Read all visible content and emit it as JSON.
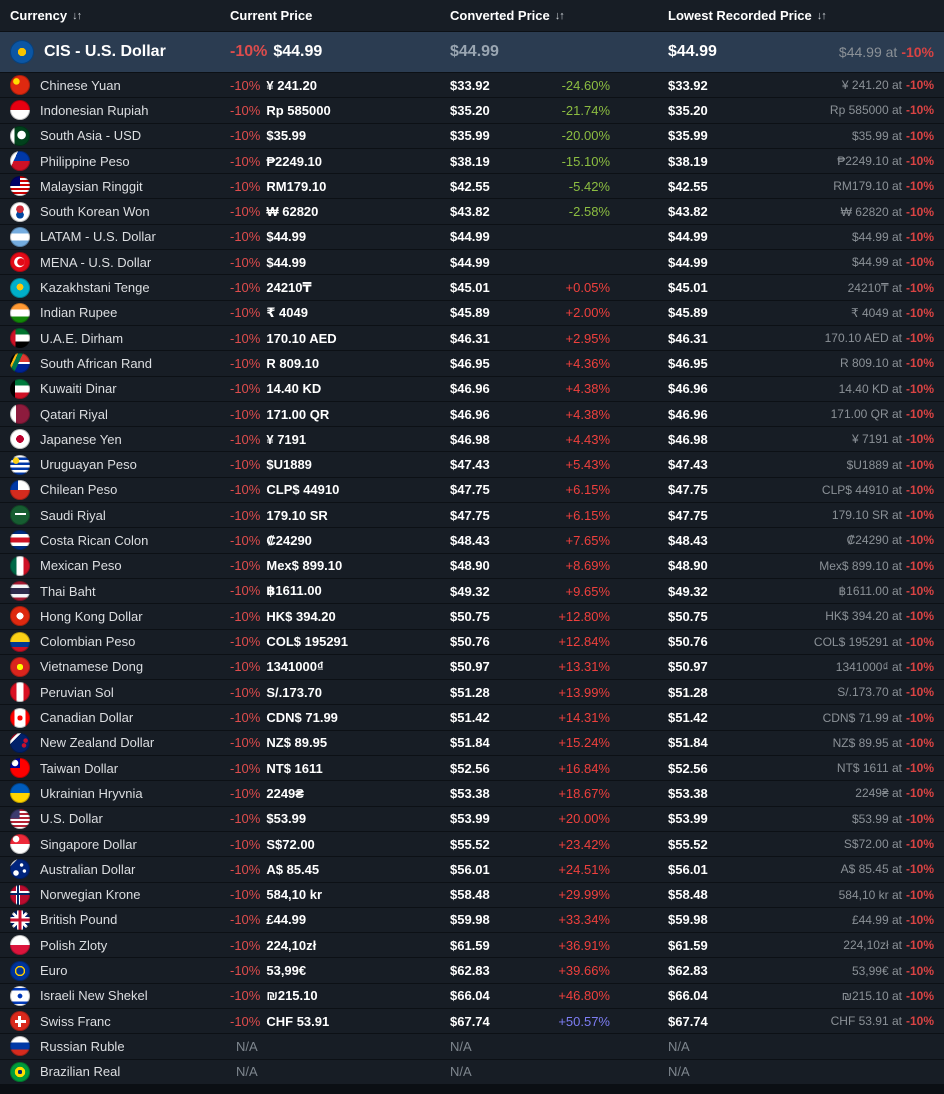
{
  "header": {
    "sort_glyph": "↓↑",
    "columns": [
      {
        "label": "Currency",
        "sortable": true
      },
      {
        "label": "Current Price",
        "sortable": false
      },
      {
        "label": "Converted Price",
        "sortable": true
      },
      {
        "label": "Lowest Recorded Price",
        "sortable": true
      }
    ]
  },
  "colors": {
    "bg": "#0b0f14",
    "row_bg": "#171d25",
    "hl_bg": "#2b3c51",
    "sep": "#0c1015",
    "text": "#dcdee1",
    "muted": "#8b9197",
    "white": "#ffffff",
    "red_discount": "#dd4c4c",
    "green": "#8cbd41",
    "red": "#ee403d",
    "blue": "#7d7df3",
    "at_red": "#d94343"
  },
  "rows": [
    {
      "name": "CIS - U.S. Dollar",
      "highlight": true,
      "flag": "flag-cis",
      "flag_css": "radial-gradient(circle at 50% 50%, #f8c300 0 24%, #0b56a4 25%)",
      "discount": "-10%",
      "current_price": "$44.99",
      "converted_price": "$44.99",
      "diff": "",
      "diff_color": "",
      "lowest_price": "$44.99",
      "lowest_at": "$44.99 at",
      "lowest_at_discount": "-10%"
    },
    {
      "name": "Chinese Yuan",
      "flag": "flag-china",
      "flag_css": "radial-gradient(circle at 32% 32%, #ffde00 0 3px, rgba(0,0,0,0) 3.5px), #de2910",
      "discount": "-10%",
      "current_price": "¥ 241.20",
      "converted_price": "$33.92",
      "diff": "-24.60%",
      "diff_color": "green",
      "lowest_price": "$33.92",
      "lowest_at": "¥ 241.20 at",
      "lowest_at_discount": "-10%"
    },
    {
      "name": "Indonesian Rupiah",
      "flag": "flag-indonesia",
      "flag_css": "linear-gradient(#e70011 50%, #ffffff 50%)",
      "discount": "-10%",
      "current_price": "Rp 585000",
      "converted_price": "$35.20",
      "diff": "-21.74%",
      "diff_color": "green",
      "lowest_price": "$35.20",
      "lowest_at": "Rp 585000 at",
      "lowest_at_discount": "-10%"
    },
    {
      "name": "South Asia - USD",
      "flag": "flag-south-asia",
      "flag_css": "radial-gradient(circle at 58% 45%, #ffffff 0 4px, rgba(0,0,0,0) 4.5px), linear-gradient(90deg, #ffffff 0 22%, #01411c 22%)",
      "discount": "-10%",
      "current_price": "$35.99",
      "converted_price": "$35.99",
      "diff": "-20.00%",
      "diff_color": "green",
      "lowest_price": "$35.99",
      "lowest_at": "$35.99 at",
      "lowest_at_discount": "-10%"
    },
    {
      "name": "Philippine Peso",
      "flag": "flag-philippines",
      "flag_css": "linear-gradient(115deg, #ffffff 28%, rgba(0,0,0,0) 28%), linear-gradient(#0038a8 50%, #ce1126 50%)",
      "discount": "-10%",
      "current_price": "₱2249.10",
      "converted_price": "$38.19",
      "diff": "-15.10%",
      "diff_color": "green",
      "lowest_price": "$38.19",
      "lowest_at": "₱2249.10 at",
      "lowest_at_discount": "-10%"
    },
    {
      "name": "Malaysian Ringgit",
      "flag": "flag-malaysia",
      "flag_css": "linear-gradient(#010066, #010066) 0 0/50% 50% no-repeat, repeating-linear-gradient(#cc0001 0 2px, #ffffff 2px 4px)",
      "discount": "-10%",
      "current_price": "RM179.10",
      "converted_price": "$42.55",
      "diff": "-5.42%",
      "diff_color": "green",
      "lowest_price": "$42.55",
      "lowest_at": "RM179.10 at",
      "lowest_at_discount": "-10%"
    },
    {
      "name": "South Korean Won",
      "flag": "flag-south-korea",
      "flag_css": "radial-gradient(circle at 50% 36%, #cd2e3a 0 23%, rgba(0,0,0,0) 24%), radial-gradient(circle at 50% 64%, #0047a0 0 23%, rgba(0,0,0,0) 24%), #ffffff",
      "discount": "-10%",
      "current_price": "₩ 62820",
      "converted_price": "$43.82",
      "diff": "-2.58%",
      "diff_color": "green",
      "lowest_price": "$43.82",
      "lowest_at": "₩ 62820 at",
      "lowest_at_discount": "-10%"
    },
    {
      "name": "LATAM - U.S. Dollar",
      "flag": "flag-latam",
      "flag_css": "linear-gradient(#74acdf 33%, #ffffff 33% 67%, #74acdf 67%)",
      "discount": "-10%",
      "current_price": "$44.99",
      "converted_price": "$44.99",
      "diff": "",
      "diff_color": "",
      "lowest_price": "$44.99",
      "lowest_at": "$44.99 at",
      "lowest_at_discount": "-10%"
    },
    {
      "name": "MENA - U.S. Dollar",
      "flag": "flag-mena",
      "flag_css": "radial-gradient(circle at 55% 50%, #e30a17 0 3.5px, rgba(0,0,0,0) 4px), radial-gradient(circle at 47% 50%, #ffffff 0 5px, rgba(0,0,0,0) 5.5px), #e30a17",
      "discount": "-10%",
      "current_price": "$44.99",
      "converted_price": "$44.99",
      "diff": "",
      "diff_color": "",
      "lowest_price": "$44.99",
      "lowest_at": "$44.99 at",
      "lowest_at_discount": "-10%"
    },
    {
      "name": "Kazakhstani Tenge",
      "flag": "flag-kazakhstan",
      "flag_css": "radial-gradient(circle at 50% 45%, #fec50c 0 22%, rgba(0,0,0,0) 23%), #00afca",
      "discount": "-10%",
      "current_price": "24210₸",
      "converted_price": "$45.01",
      "diff": "+0.05%",
      "diff_color": "red",
      "lowest_price": "$45.01",
      "lowest_at": "24210₸ at",
      "lowest_at_discount": "-10%"
    },
    {
      "name": "Indian Rupee",
      "flag": "flag-india",
      "flag_css": "linear-gradient(#ff9933 33%, #ffffff 33% 67%, #138808 67%)",
      "discount": "-10%",
      "current_price": "₹ 4049",
      "converted_price": "$45.89",
      "diff": "+2.00%",
      "diff_color": "red",
      "lowest_price": "$45.89",
      "lowest_at": "₹ 4049 at",
      "lowest_at_discount": "-10%"
    },
    {
      "name": "U.A.E. Dirham",
      "flag": "flag-uae",
      "flag_css": "linear-gradient(90deg, #ce1126 0 28%, rgba(0,0,0,0) 28%), linear-gradient(#00732f 33%, #ffffff 33% 67%, #000000 67%)",
      "discount": "-10%",
      "current_price": "170.10 AED",
      "converted_price": "$46.31",
      "diff": "+2.95%",
      "diff_color": "red",
      "lowest_price": "$46.31",
      "lowest_at": "170.10 AED at",
      "lowest_at_discount": "-10%"
    },
    {
      "name": "South African Rand",
      "flag": "flag-south-africa",
      "flag_css": "linear-gradient(115deg, #000000 20%, #ffb612 20% 28%, #007a4d 28% 45%, rgba(0,0,0,0) 45%), linear-gradient(#de3831 45%, #ffffff 45% 55%, #002395 55%)",
      "discount": "-10%",
      "current_price": "R 809.10",
      "converted_price": "$46.95",
      "diff": "+4.36%",
      "diff_color": "red",
      "lowest_price": "$46.95",
      "lowest_at": "R 809.10 at",
      "lowest_at_discount": "-10%"
    },
    {
      "name": "Kuwaiti Dinar",
      "flag": "flag-kuwait",
      "flag_css": "linear-gradient(90deg, #000000 0 25%, rgba(0,0,0,0) 25%), linear-gradient(#007a3d 33%, #ffffff 33% 67%, #ce1126 67%)",
      "discount": "-10%",
      "current_price": "14.40 KD",
      "converted_price": "$46.96",
      "diff": "+4.38%",
      "diff_color": "red",
      "lowest_price": "$46.96",
      "lowest_at": "14.40 KD at",
      "lowest_at_discount": "-10%"
    },
    {
      "name": "Qatari Riyal",
      "flag": "flag-qatar",
      "flag_css": "linear-gradient(90deg, #ffffff 0 30%, #8d1b3d 30%)",
      "discount": "-10%",
      "current_price": "171.00 QR",
      "converted_price": "$46.96",
      "diff": "+4.38%",
      "diff_color": "red",
      "lowest_price": "$46.96",
      "lowest_at": "171.00 QR at",
      "lowest_at_discount": "-10%"
    },
    {
      "name": "Japanese Yen",
      "flag": "flag-japan",
      "flag_css": "radial-gradient(circle at 50% 50%, #bc002d 0 27%, rgba(0,0,0,0) 28%), #ffffff",
      "discount": "-10%",
      "current_price": "¥ 7191",
      "converted_price": "$46.98",
      "diff": "+4.43%",
      "diff_color": "red",
      "lowest_price": "$46.98",
      "lowest_at": "¥ 7191 at",
      "lowest_at_discount": "-10%"
    },
    {
      "name": "Uruguayan Peso",
      "flag": "flag-uruguay",
      "flag_css": "radial-gradient(circle at 30% 28%, #fcd116 0 3px, rgba(0,0,0,0) 3.5px), repeating-linear-gradient(#ffffff 0 2.5px, #0038a8 2.5px 5px)",
      "discount": "-10%",
      "current_price": "$U1889",
      "converted_price": "$47.43",
      "diff": "+5.43%",
      "diff_color": "red",
      "lowest_price": "$47.43",
      "lowest_at": "$U1889 at",
      "lowest_at_discount": "-10%"
    },
    {
      "name": "Chilean Peso",
      "flag": "flag-chile",
      "flag_css": "linear-gradient(#0039a6, #0039a6) 0 0/42% 50% no-repeat, linear-gradient(#ffffff 50%, #d52b1e 50%)",
      "discount": "-10%",
      "current_price": "CLP$ 44910",
      "converted_price": "$47.75",
      "diff": "+6.15%",
      "diff_color": "red",
      "lowest_price": "$47.75",
      "lowest_at": "CLP$ 44910 at",
      "lowest_at_discount": "-10%"
    },
    {
      "name": "Saudi Riyal",
      "flag": "flag-saudi-arabia",
      "flag_css": "linear-gradient(#ffffff, #ffffff) 50% 42%/55% 10% no-repeat, #165d31",
      "discount": "-10%",
      "current_price": "179.10 SR",
      "converted_price": "$47.75",
      "diff": "+6.15%",
      "diff_color": "red",
      "lowest_price": "$47.75",
      "lowest_at": "179.10 SR at",
      "lowest_at_discount": "-10%"
    },
    {
      "name": "Costa Rican Colon",
      "flag": "flag-costa-rica",
      "flag_css": "linear-gradient(#002b7f 0 20%, #ffffff 20% 38%, #ce1126 38% 62%, #ffffff 62% 80%, #002b7f 80%)",
      "discount": "-10%",
      "current_price": "₡24290",
      "converted_price": "$48.43",
      "diff": "+7.65%",
      "diff_color": "red",
      "lowest_price": "$48.43",
      "lowest_at": "₡24290 at",
      "lowest_at_discount": "-10%"
    },
    {
      "name": "Mexican Peso",
      "flag": "flag-mexico",
      "flag_css": "linear-gradient(90deg, #006847 33%, #ffffff 33% 67%, #ce1126 67%)",
      "discount": "-10%",
      "current_price": "Mex$ 899.10",
      "converted_price": "$48.90",
      "diff": "+8.69%",
      "diff_color": "red",
      "lowest_price": "$48.90",
      "lowest_at": "Mex$ 899.10 at",
      "lowest_at_discount": "-10%"
    },
    {
      "name": "Thai Baht",
      "flag": "flag-thailand",
      "flag_css": "linear-gradient(#a51931 0 18%, #f4f5f8 18% 36%, #2d2a4a 36% 64%, #f4f5f8 64% 82%, #a51931 82%)",
      "discount": "-10%",
      "current_price": "฿1611.00",
      "converted_price": "$49.32",
      "diff": "+9.65%",
      "diff_color": "red",
      "lowest_price": "$49.32",
      "lowest_at": "฿1611.00 at",
      "lowest_at_discount": "-10%"
    },
    {
      "name": "Hong Kong Dollar",
      "flag": "flag-hong-kong",
      "flag_css": "radial-gradient(circle at 50% 50%, #ffffff 0 24%, rgba(0,0,0,0) 25%), #de2910",
      "discount": "-10%",
      "current_price": "HK$ 394.20",
      "converted_price": "$50.75",
      "diff": "+12.80%",
      "diff_color": "red",
      "lowest_price": "$50.75",
      "lowest_at": "HK$ 394.20 at",
      "lowest_at_discount": "-10%"
    },
    {
      "name": "Colombian Peso",
      "flag": "flag-colombia",
      "flag_css": "linear-gradient(#fcd116 50%, #003893 50% 75%, #ce1126 75%)",
      "discount": "-10%",
      "current_price": "COL$ 195291",
      "converted_price": "$50.76",
      "diff": "+12.84%",
      "diff_color": "red",
      "lowest_price": "$50.76",
      "lowest_at": "COL$ 195291 at",
      "lowest_at_discount": "-10%"
    },
    {
      "name": "Vietnamese Dong",
      "flag": "flag-vietnam",
      "flag_css": "radial-gradient(circle at 50% 50%, #ffff00 0 22%, rgba(0,0,0,0) 23%), #da251d",
      "discount": "-10%",
      "current_price": "1341000₫",
      "converted_price": "$50.97",
      "diff": "+13.31%",
      "diff_color": "red",
      "lowest_price": "$50.97",
      "lowest_at": "1341000₫ at",
      "lowest_at_discount": "-10%"
    },
    {
      "name": "Peruvian Sol",
      "flag": "flag-peru",
      "flag_css": "linear-gradient(90deg, #d91023 33%, #ffffff 33% 67%, #d91023 67%)",
      "discount": "-10%",
      "current_price": "S/.173.70",
      "converted_price": "$51.28",
      "diff": "+13.99%",
      "diff_color": "red",
      "lowest_price": "$51.28",
      "lowest_at": "S/.173.70 at",
      "lowest_at_discount": "-10%"
    },
    {
      "name": "Canadian Dollar",
      "flag": "flag-canada",
      "flag_css": "radial-gradient(circle at 50% 50%, #ff0000 0 18%, rgba(0,0,0,0) 19%), linear-gradient(90deg, #ff0000 0 22%, rgba(0,0,0,0) 22% 78%, #ff0000 78%), #ffffff",
      "discount": "-10%",
      "current_price": "CDN$ 71.99",
      "converted_price": "$51.42",
      "diff": "+14.31%",
      "diff_color": "red",
      "lowest_price": "$51.42",
      "lowest_at": "CDN$ 71.99 at",
      "lowest_at_discount": "-10%"
    },
    {
      "name": "New Zealand Dollar",
      "flag": "flag-new-zealand",
      "flag_css": "radial-gradient(circle at 70% 62%, #c8102e 0 2px, rgba(0,0,0,0) 2.5px), radial-gradient(circle at 78% 38%, #c8102e 0 2px, rgba(0,0,0,0) 2.5px), linear-gradient(135deg, #ffffff 0 12%, #c8102e 12% 20%, #ffffff 20% 28%, rgba(0,0,0,0) 28%), #012169",
      "discount": "-10%",
      "current_price": "NZ$ 89.95",
      "converted_price": "$51.84",
      "diff": "+15.24%",
      "diff_color": "red",
      "lowest_price": "$51.84",
      "lowest_at": "NZ$ 89.95 at",
      "lowest_at_discount": "-10%"
    },
    {
      "name": "Taiwan Dollar",
      "flag": "flag-taiwan",
      "flag_css": "radial-gradient(circle at 25% 25%, #ffffff 0 3px, rgba(0,0,0,0) 3.5px), linear-gradient(#000095, #000095) 0 0/50% 50% no-repeat, #fe0000",
      "discount": "-10%",
      "current_price": "NT$ 1611",
      "converted_price": "$52.56",
      "diff": "+16.84%",
      "diff_color": "red",
      "lowest_price": "$52.56",
      "lowest_at": "NT$ 1611 at",
      "lowest_at_discount": "-10%"
    },
    {
      "name": "Ukrainian Hryvnia",
      "flag": "flag-ukraine",
      "flag_css": "linear-gradient(#005bbb 50%, #ffd500 50%)",
      "discount": "-10%",
      "current_price": "2249₴",
      "converted_price": "$53.38",
      "diff": "+18.67%",
      "diff_color": "red",
      "lowest_price": "$53.38",
      "lowest_at": "2249₴ at",
      "lowest_at_discount": "-10%"
    },
    {
      "name": "U.S. Dollar",
      "flag": "flag-usa",
      "flag_css": "linear-gradient(#3c3b6e, #3c3b6e) 0 0/48% 48% no-repeat, repeating-linear-gradient(#b22234 0 2px, #ffffff 2px 4px)",
      "discount": "-10%",
      "current_price": "$53.99",
      "converted_price": "$53.99",
      "diff": "+20.00%",
      "diff_color": "red",
      "lowest_price": "$53.99",
      "lowest_at": "$53.99 at",
      "lowest_at_discount": "-10%"
    },
    {
      "name": "Singapore Dollar",
      "flag": "flag-singapore",
      "flag_css": "radial-gradient(circle at 30% 25%, #ffffff 0 3px, rgba(0,0,0,0) 3.5px), linear-gradient(#ed2939 50%, #ffffff 50%)",
      "discount": "-10%",
      "current_price": "S$72.00",
      "converted_price": "$55.52",
      "diff": "+23.42%",
      "diff_color": "red",
      "lowest_price": "$55.52",
      "lowest_at": "S$72.00 at",
      "lowest_at_discount": "-10%"
    },
    {
      "name": "Australian Dollar",
      "flag": "flag-australia",
      "flag_css": "radial-gradient(circle at 72% 60%, #ffffff 0 1.5px, rgba(0,0,0,0) 2px), radial-gradient(circle at 58% 30%, #ffffff 0 1.5px, rgba(0,0,0,0) 2px), radial-gradient(circle at 30% 70%, #ffffff 0 2.5px, rgba(0,0,0,0) 3px), linear-gradient(135deg, #ffffff 0 8%, rgba(0,0,0,0) 8% 14%, #ffffff 14% 20%, rgba(0,0,0,0) 20%), #00247d",
      "discount": "-10%",
      "current_price": "A$ 85.45",
      "converted_price": "$56.01",
      "diff": "+24.51%",
      "diff_color": "red",
      "lowest_price": "$56.01",
      "lowest_at": "A$ 85.45 at",
      "lowest_at_discount": "-10%"
    },
    {
      "name": "Norwegian Krone",
      "flag": "flag-norway",
      "flag_css": "linear-gradient(#002868, #002868) 38% 0/10% 100% no-repeat, linear-gradient(#002868, #002868) 0 46%/100% 10% no-repeat, linear-gradient(#ffffff, #ffffff) 36% 0/20% 100% no-repeat, linear-gradient(#ffffff, #ffffff) 0 42%/100% 20% no-repeat, #ba0c2f",
      "discount": "-10%",
      "current_price": "584,10 kr",
      "converted_price": "$58.48",
      "diff": "+29.99%",
      "diff_color": "red",
      "lowest_price": "$58.48",
      "lowest_at": "584,10 kr at",
      "lowest_at_discount": "-10%"
    },
    {
      "name": "British Pound",
      "flag": "flag-uk",
      "flag_css": "linear-gradient(rgba(0,0,0,0) 42%, #c8102e 42% 58%, rgba(0,0,0,0) 58%), linear-gradient(90deg, rgba(0,0,0,0) 42%, #c8102e 42% 58%, rgba(0,0,0,0) 58%), linear-gradient(rgba(0,0,0,0) 34%, #ffffff 34% 66%, rgba(0,0,0,0) 66%), linear-gradient(90deg, rgba(0,0,0,0) 34%, #ffffff 34% 66%, rgba(0,0,0,0) 66%), linear-gradient(45deg, rgba(0,0,0,0) 45%, #ffffff 45% 55%, rgba(0,0,0,0) 55%), linear-gradient(135deg, rgba(0,0,0,0) 45%, #ffffff 45% 55%, rgba(0,0,0,0) 55%), #012169",
      "discount": "-10%",
      "current_price": "£44.99",
      "converted_price": "$59.98",
      "diff": "+33.34%",
      "diff_color": "red",
      "lowest_price": "$59.98",
      "lowest_at": "£44.99 at",
      "lowest_at_discount": "-10%"
    },
    {
      "name": "Polish Zloty",
      "flag": "flag-poland",
      "flag_css": "linear-gradient(#ffffff 50%, #dc143c 50%)",
      "discount": "-10%",
      "current_price": "224,10zł",
      "converted_price": "$61.59",
      "diff": "+36.91%",
      "diff_color": "red",
      "lowest_price": "$61.59",
      "lowest_at": "224,10zł at",
      "lowest_at_discount": "-10%"
    },
    {
      "name": "Euro",
      "flag": "flag-eu",
      "flag_css": "radial-gradient(circle at 50% 50%, rgba(0,0,0,0) 0 26%, #ffcc00 27% 36%, rgba(0,0,0,0) 37%), #003399",
      "discount": "-10%",
      "current_price": "53,99€",
      "converted_price": "$62.83",
      "diff": "+39.66%",
      "diff_color": "red",
      "lowest_price": "$62.83",
      "lowest_at": "53,99€ at",
      "lowest_at_discount": "-10%"
    },
    {
      "name": "Israeli New Shekel",
      "flag": "flag-israel",
      "flag_css": "radial-gradient(circle at 50% 50%, #0038b8 0 16%, rgba(0,0,0,0) 17%), linear-gradient(rgba(0,0,0,0) 10%, #0038b8 10% 22%, rgba(0,0,0,0) 22% 78%, #0038b8 78% 90%, rgba(0,0,0,0) 90%), #ffffff",
      "discount": "-10%",
      "current_price": "₪215.10",
      "converted_price": "$66.04",
      "diff": "+46.80%",
      "diff_color": "red",
      "lowest_price": "$66.04",
      "lowest_at": "₪215.10 at",
      "lowest_at_discount": "-10%"
    },
    {
      "name": "Swiss Franc",
      "flag": "flag-switzerland",
      "flag_css": "linear-gradient(#ffffff, #ffffff) center/16% 55% no-repeat, linear-gradient(#ffffff, #ffffff) center/55% 16% no-repeat, #da291c",
      "discount": "-10%",
      "current_price": "CHF 53.91",
      "converted_price": "$67.74",
      "diff": "+50.57%",
      "diff_color": "blue",
      "lowest_price": "$67.74",
      "lowest_at": "CHF 53.91 at",
      "lowest_at_discount": "-10%"
    },
    {
      "name": "Russian Ruble",
      "na": true,
      "flag": "flag-russia",
      "flag_css": "linear-gradient(#ffffff 33%, #0039a6 33% 67%, #d52b1e 67%)",
      "discount": "",
      "current_price": "N/A",
      "converted_price": "N/A",
      "diff": "",
      "diff_color": "",
      "lowest_price": "N/A",
      "lowest_at": "",
      "lowest_at_discount": ""
    },
    {
      "name": "Brazilian Real",
      "na": true,
      "flag": "flag-brazil",
      "flag_css": "radial-gradient(circle at 50% 50%, #002776 0 15%, rgba(0,0,0,0) 16%), radial-gradient(closest-side, #ffdf00 0 52%, rgba(0,0,0,0) 53%), #009c3b",
      "discount": "",
      "current_price": "N/A",
      "converted_price": "N/A",
      "diff": "",
      "diff_color": "",
      "lowest_price": "N/A",
      "lowest_at": "",
      "lowest_at_discount": ""
    }
  ]
}
